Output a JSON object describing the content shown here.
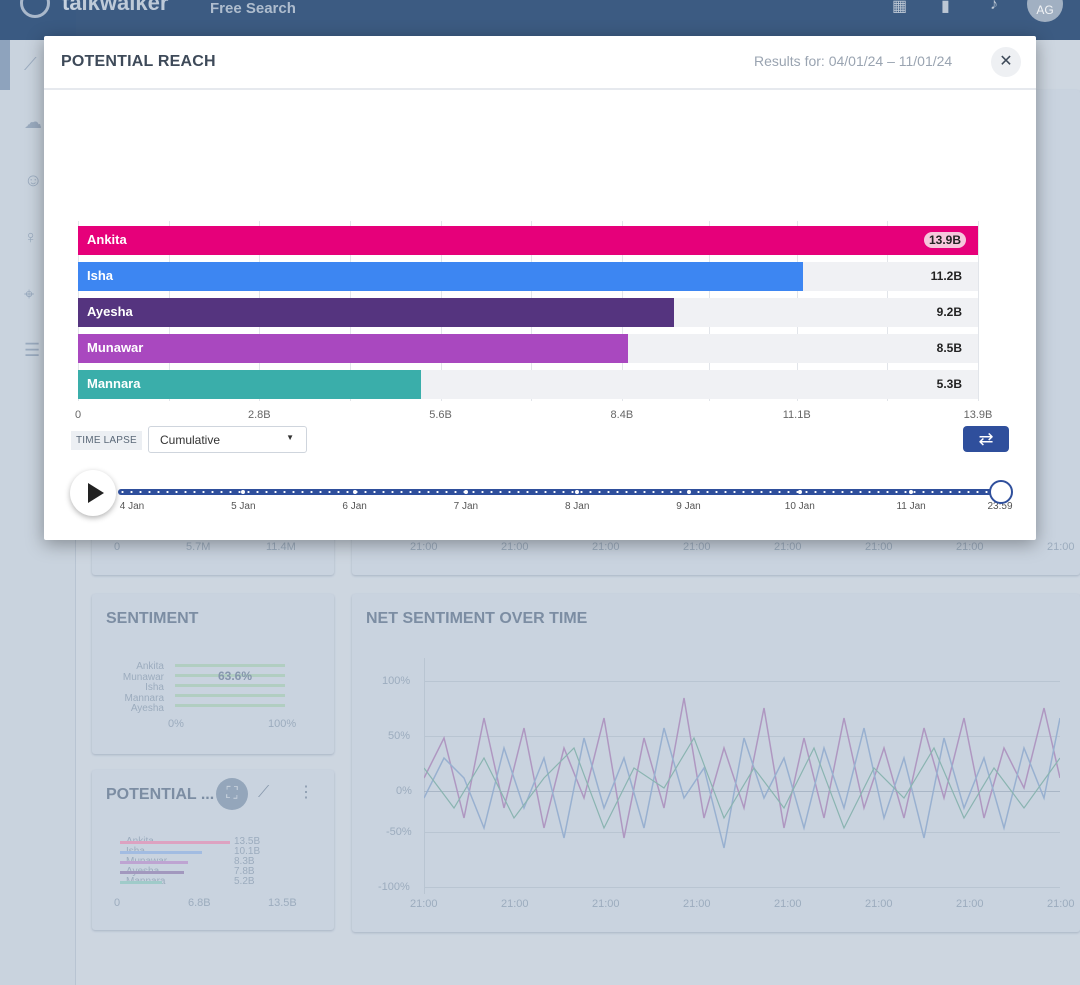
{
  "app": {
    "brand": "talkwalker",
    "subnav": "Free Search",
    "avatar": "AG"
  },
  "background_cards": {
    "sentiment": {
      "title": "SENTIMENT",
      "names": [
        "Ankita",
        "Munawar",
        "Isha",
        "Mannara",
        "Ayesha"
      ],
      "pct": "63.6%",
      "axis": [
        "0%",
        "100%"
      ]
    },
    "net_sentiment": {
      "title": "NET SENTIMENT OVER TIME",
      "y_ticks": [
        "100%",
        "50%",
        "0%",
        "-50%",
        "-100%"
      ],
      "x_ticks": [
        "21:00",
        "21:00",
        "21:00",
        "21:00",
        "21:00",
        "21:00",
        "21:00",
        "21:00"
      ]
    },
    "potential_small": {
      "title": "POTENTIAL ...",
      "rows": [
        {
          "name": "Ankita",
          "value": "13.5B"
        },
        {
          "name": "Isha",
          "value": "10.1B"
        },
        {
          "name": "Munawar",
          "value": "8.3B"
        },
        {
          "name": "Ayesha",
          "value": "7.8B"
        },
        {
          "name": "Mannara",
          "value": "5.2B"
        }
      ],
      "axis": [
        "0",
        "6.8B",
        "13.5B"
      ]
    },
    "upper_left_axis": [
      "0",
      "5.7M",
      "11.4M"
    ],
    "upper_right_axis": [
      "21:00",
      "21:00",
      "21:00",
      "21:00",
      "21:00",
      "21:00",
      "21:00",
      "21:00"
    ]
  },
  "modal": {
    "title": "POTENTIAL REACH",
    "results_label": "Results for: 04/01/24 – 11/01/24",
    "close_icon": "close-icon",
    "time_lapse_label": "TIME LAPSE",
    "time_lapse_value": "Cumulative",
    "loop_icon": "repeat-icon",
    "play_icon": "play-icon",
    "timeline_labels": [
      "4 Jan",
      "5 Jan",
      "6 Jan",
      "7 Jan",
      "8 Jan",
      "9 Jan",
      "10 Jan",
      "11 Jan",
      "23:59"
    ],
    "timeline_position": 1.0
  },
  "chart_data": {
    "type": "bar",
    "orientation": "horizontal",
    "title": "POTENTIAL REACH",
    "categories": [
      "Ankita",
      "Isha",
      "Ayesha",
      "Munawar",
      "Mannara"
    ],
    "values": [
      13.9,
      11.2,
      9.2,
      8.5,
      5.3
    ],
    "value_labels": [
      "13.9B",
      "11.2B",
      "9.2B",
      "8.5B",
      "5.3B"
    ],
    "colors": [
      "#e6007a",
      "#3d86f2",
      "#55347f",
      "#a948bf",
      "#3aaeaa"
    ],
    "xlim": [
      0,
      13.9
    ],
    "x_ticks": [
      0,
      2.8,
      5.6,
      8.4,
      11.1,
      13.9
    ],
    "x_tick_labels": [
      "0",
      "2.8B",
      "5.6B",
      "8.4B",
      "11.1B",
      "13.9B"
    ],
    "unit": "B"
  }
}
